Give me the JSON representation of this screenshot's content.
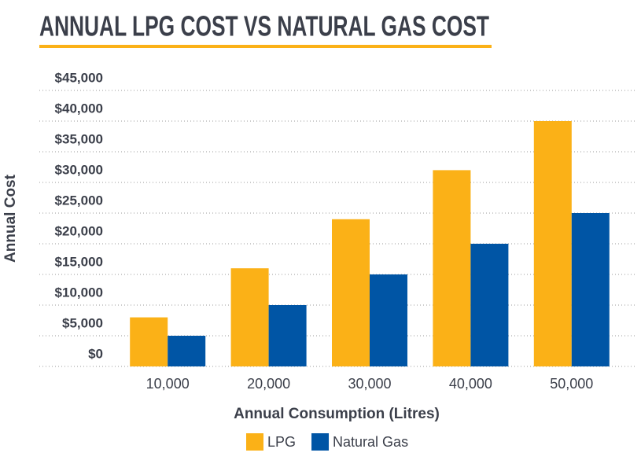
{
  "chart_data": {
    "type": "bar",
    "title": "ANNUAL LPG COST VS NATURAL GAS COST",
    "x_label": "Annual Consumption (Litres)",
    "y_label": "Annual Cost",
    "categories": [
      "10,000",
      "20,000",
      "30,000",
      "40,000",
      "50,000"
    ],
    "series": [
      {
        "name": "LPG",
        "color": "#fbb117",
        "values": [
          8000,
          16000,
          24000,
          32000,
          40000
        ]
      },
      {
        "name": "Natural Gas",
        "color": "#0055a5",
        "values": [
          5000,
          10000,
          15000,
          20000,
          25000
        ]
      }
    ],
    "ylim": [
      0,
      45000
    ],
    "yticks": [
      {
        "value": 0,
        "label": "$0"
      },
      {
        "value": 5000,
        "label": "$5,000"
      },
      {
        "value": 10000,
        "label": "$10,000"
      },
      {
        "value": 15000,
        "label": "$15,000"
      },
      {
        "value": 20000,
        "label": "$20,000"
      },
      {
        "value": 25000,
        "label": "$25,000"
      },
      {
        "value": 30000,
        "label": "$30,000"
      },
      {
        "value": 35000,
        "label": "$35,000"
      },
      {
        "value": 40000,
        "label": "$40,000"
      },
      {
        "value": 45000,
        "label": "$45,000"
      }
    ],
    "grid": true
  }
}
